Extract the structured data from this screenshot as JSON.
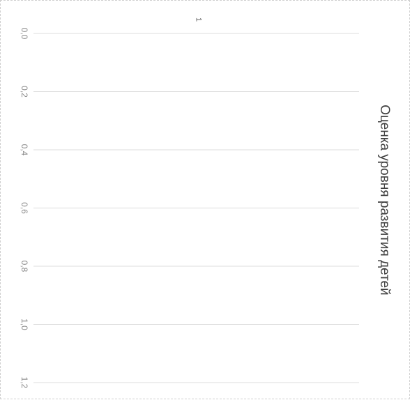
{
  "chart_data": {
    "type": "bar",
    "orientation": "horizontal",
    "rotated": "90deg-clockwise",
    "title": "Оценка уровня развития детей",
    "categories": [
      "1"
    ],
    "values": [
      0
    ],
    "xlim": [
      0.0,
      1.2
    ],
    "ticks": [
      "0,0",
      "0,2",
      "0,4",
      "0,6",
      "0,8",
      "1,0",
      "1,2"
    ],
    "tick_values": [
      0.0,
      0.2,
      0.4,
      0.6,
      0.8,
      1.0,
      1.2
    ],
    "grid": true,
    "legend": "none"
  },
  "colors": {
    "grid": "#dcdcdc",
    "tick_text": "#8a8a8a",
    "title_text": "#404040",
    "border": "#cfcfcf"
  }
}
